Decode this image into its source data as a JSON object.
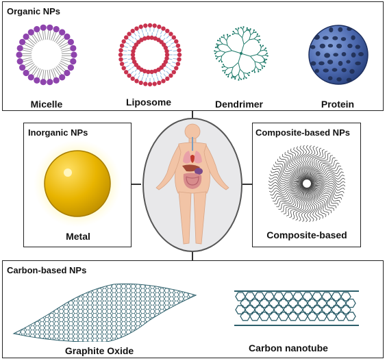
{
  "organic": {
    "title": "Organic NPs",
    "items": [
      "Micelle",
      "Liposome",
      "Dendrimer",
      "Protein"
    ]
  },
  "inorganic": {
    "title": "Inorganic NPs",
    "item": "Metal"
  },
  "composite": {
    "title": "Composite-based NPs",
    "item": "Composite-based"
  },
  "carbon": {
    "title": "Carbon-based NPs",
    "items": [
      "Graphite Oxide",
      "Carbon nanotube"
    ]
  },
  "colors": {
    "micelle": "#8e44ad",
    "liposome": "#c8334f",
    "dendrimer": "#1e7a6a",
    "protein": "#3e5a9e",
    "metal": "#e8b400",
    "carbon": "#2d5f6b"
  },
  "icons": [
    "micelle-icon",
    "liposome-icon",
    "dendrimer-icon",
    "protein-icon",
    "human-body-icon",
    "metal-sphere-icon",
    "composite-icon",
    "graphene-sheet-icon",
    "nanotube-icon"
  ]
}
